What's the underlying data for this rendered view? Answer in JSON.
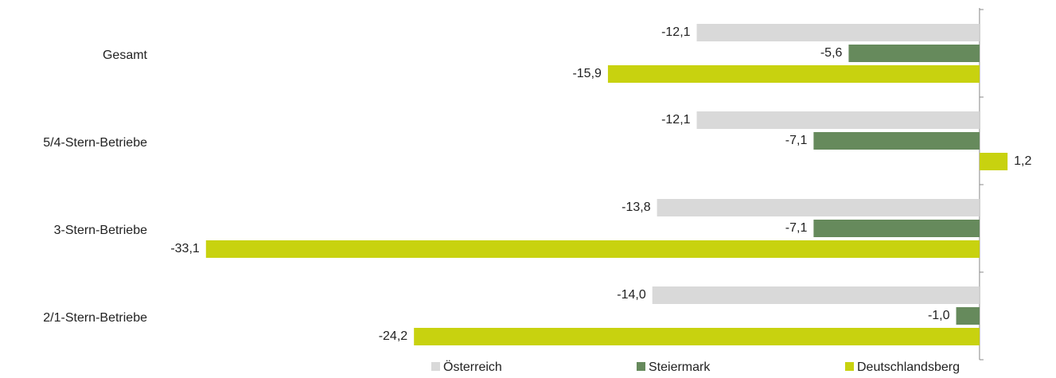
{
  "chart_data": {
    "type": "bar",
    "orientation": "horizontal",
    "categories": [
      "Gesamt",
      "5/4-Stern-Betriebe",
      "3-Stern-Betriebe",
      "2/1-Stern-Betriebe"
    ],
    "series": [
      {
        "name": "Österreich",
        "color": "#d9d9d9",
        "values": [
          -12.1,
          -12.1,
          -13.8,
          -14.0
        ],
        "value_labels": [
          "-12,1",
          "-12,1",
          "-13,8",
          "-14,0"
        ]
      },
      {
        "name": "Steiermark",
        "color": "#668a5c",
        "values": [
          -5.6,
          -7.1,
          -7.1,
          -1.0
        ],
        "value_labels": [
          "-5,6",
          "-7,1",
          "-7,1",
          "-1,0"
        ]
      },
      {
        "name": "Deutschlandsberg",
        "color": "#c8d20f",
        "values": [
          -15.9,
          1.2,
          -33.1,
          -24.2
        ],
        "value_labels": [
          "-15,9",
          "1,2",
          "-33,1",
          "-24,2"
        ]
      }
    ],
    "xlim": [
      -35,
      3
    ],
    "legend": "bottom"
  }
}
